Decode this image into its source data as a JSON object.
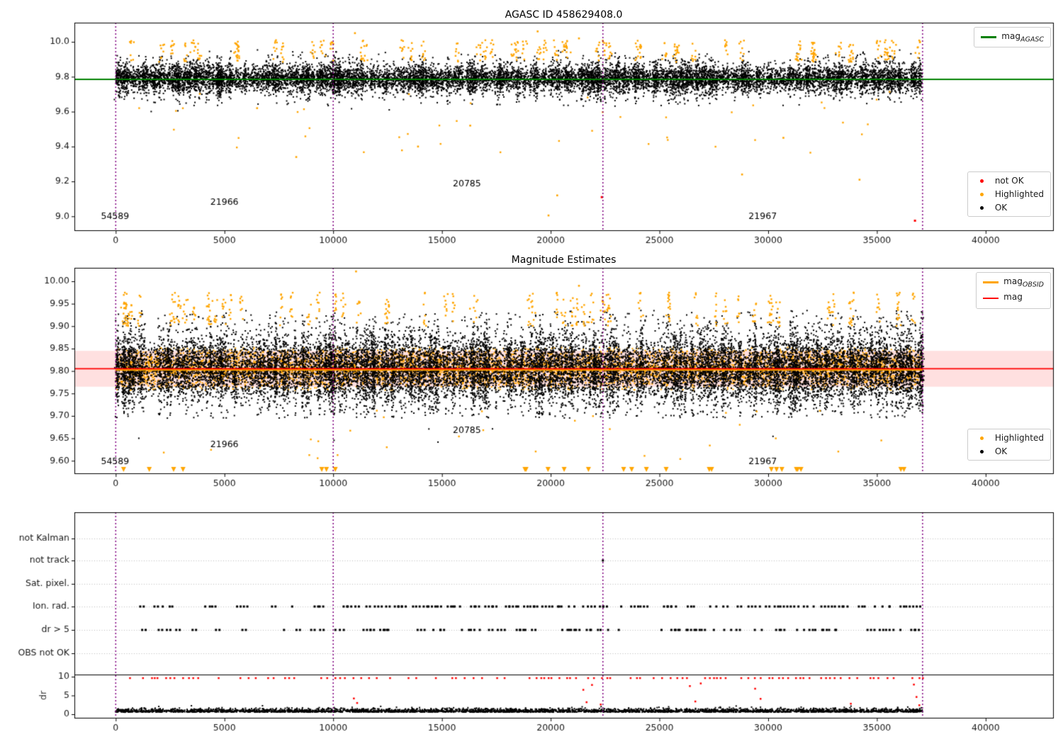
{
  "colors": {
    "ok": "#000000",
    "highlighted": "#ffa500",
    "not_ok": "#ff0000",
    "mag_agasc": "#008000",
    "mag_obsid": "#ffa500",
    "mag": "#ff0000",
    "band": "rgba(255,0,0,0.12)",
    "vline": "#800080",
    "grid": "#bbbbbb",
    "frame": "#000000",
    "text": "#1a1a1a"
  },
  "chart_data": [
    {
      "type": "scatter",
      "title": "AGASC ID 458629408.0",
      "xlim": [
        -1900,
        43100
      ],
      "ylim": [
        8.92,
        10.11
      ],
      "xticks": [
        0,
        5000,
        10000,
        15000,
        20000,
        25000,
        30000,
        35000,
        40000
      ],
      "yticks": [
        9.0,
        9.2,
        9.4,
        9.6,
        9.8,
        10.0
      ],
      "ydecimals": 1,
      "line_agasc": {
        "y": 9.785,
        "color": "#008000",
        "width": 2
      },
      "vlines": [
        0,
        10000,
        22400,
        37100
      ],
      "annotations": [
        {
          "text": "54589",
          "x": -680,
          "y": 8.985
        },
        {
          "text": "21966",
          "x": 4350,
          "y": 9.065
        },
        {
          "text": "20785",
          "x": 15500,
          "y": 9.17
        },
        {
          "text": "21967",
          "x": 29100,
          "y": 8.985
        }
      ],
      "legend_line": [
        {
          "main": "mag",
          "sub": "AGASC",
          "color": "#008000"
        }
      ],
      "legend_markers": [
        {
          "label": "not OK",
          "color": "#ff0000"
        },
        {
          "label": "Highlighted",
          "color": "#ffa500"
        },
        {
          "label": "OK",
          "color": "#000000"
        }
      ],
      "series": {
        "ok_base": {
          "seed": 11,
          "count": 6500,
          "x_max": 37100,
          "mean": 9.79,
          "sigma": 0.033,
          "clip": [
            9.7,
            9.9
          ]
        },
        "ok_spikes": {
          "seed": 12,
          "columns": 420,
          "per": 14,
          "x_max": 37100,
          "mean": 9.79,
          "sigma": 0.055,
          "clip": [
            9.63,
            9.955
          ],
          "xjit": 40
        },
        "ok_low": {
          "seed": 13,
          "count": 12,
          "x_max": 36200,
          "y_range": [
            9.6,
            9.7
          ]
        },
        "hl_clusters": {
          "seed": 14,
          "count": 55,
          "per": 8,
          "x_max": 36800,
          "y_range": [
            9.885,
            10.01
          ],
          "xjit": 60
        },
        "hl_low": {
          "seed": 15,
          "count": 42,
          "x_max": 36200,
          "y_range": [
            9.36,
            9.72
          ]
        },
        "hl_points": [
          [
            11000,
            10.05
          ],
          [
            19400,
            10.06
          ],
          [
            21300,
            10.02
          ],
          [
            20300,
            9.12
          ],
          [
            19900,
            9.005
          ],
          [
            28800,
            9.24
          ],
          [
            34200,
            9.21
          ],
          [
            30700,
            9.45
          ],
          [
            13900,
            9.4
          ],
          [
            16300,
            9.52
          ],
          [
            8300,
            9.34
          ],
          [
            6500,
            9.62
          ]
        ],
        "not_ok_points": [
          [
            22350,
            9.11
          ],
          [
            36750,
            8.975
          ]
        ]
      }
    },
    {
      "type": "scatter",
      "title": "Magnitude Estimates",
      "xlim": [
        -1900,
        43100
      ],
      "ylim": [
        9.572,
        10.03
      ],
      "xticks": [
        0,
        5000,
        10000,
        15000,
        20000,
        25000,
        30000,
        35000,
        40000
      ],
      "yticks": [
        9.6,
        9.65,
        9.7,
        9.75,
        9.8,
        9.85,
        9.9,
        9.95,
        10.0
      ],
      "ydecimals": 2,
      "band": {
        "y0": 9.765,
        "y1": 9.845,
        "color": "rgba(255,0,0,0.12)"
      },
      "line_obsid": {
        "y": 9.803,
        "color": "#ffa500",
        "width": 3,
        "x_range": [
          0,
          37100
        ]
      },
      "line_mag": {
        "y": 9.805,
        "color": "#ff0000",
        "width": 1.8
      },
      "vlines": [
        0,
        10000,
        22400,
        37100
      ],
      "annotations": [
        {
          "text": "54589",
          "x": -680,
          "y": 9.592
        },
        {
          "text": "21966",
          "x": 4350,
          "y": 9.63
        },
        {
          "text": "20785",
          "x": 15500,
          "y": 9.662
        },
        {
          "text": "21967",
          "x": 29100,
          "y": 9.592
        }
      ],
      "legend_line": [
        {
          "main": "mag",
          "sub": "OBSID",
          "color": "#ffa500"
        },
        {
          "main": "mag",
          "sub": "",
          "color": "#ff0000"
        }
      ],
      "legend_markers": [
        {
          "label": "Highlighted",
          "color": "#ffa500"
        },
        {
          "label": "OK",
          "color": "#000000"
        }
      ],
      "series": {
        "ok_base": {
          "seed": 21,
          "count": 8000,
          "x_max": 37100,
          "mean": 9.805,
          "sigma": 0.03,
          "clip": [
            9.74,
            9.875
          ]
        },
        "ok_spikes": {
          "seed": 22,
          "columns": 480,
          "per": 22,
          "x_max": 37100,
          "mean": 9.805,
          "sigma": 0.052,
          "clip": [
            9.695,
            9.935
          ],
          "xjit": 35
        },
        "ok_low": {
          "seed": 27,
          "count": 6,
          "x_max": 36000,
          "y_range": [
            9.64,
            9.7
          ]
        },
        "hl_band": {
          "seed": 23,
          "count": 6000,
          "x_max": 37100,
          "mean": 9.805,
          "sigma": 0.026,
          "clip": [
            9.757,
            9.853
          ]
        },
        "hl_clusters": {
          "seed": 24,
          "count": 60,
          "per": 8,
          "x_max": 36800,
          "y_range": [
            9.9,
            9.975
          ],
          "xjit": 55
        },
        "hl_low": {
          "seed": 25,
          "count": 28,
          "x_max": 36200,
          "y_range": [
            9.6,
            9.72
          ]
        },
        "hl_points": [
          [
            11050,
            10.022
          ],
          [
            21300,
            9.99
          ]
        ],
        "clip_marker_xs": {
          "seed": 26,
          "count": 26,
          "x_max": 36300
        }
      }
    },
    {
      "type": "flags",
      "xlim": [
        -1900,
        43100
      ],
      "xticks": [
        0,
        5000,
        10000,
        15000,
        20000,
        25000,
        30000,
        35000,
        40000
      ],
      "rows": [
        "not Kalman",
        "not track",
        "Sat. pixel.",
        "Ion. rad.",
        "dr > 5",
        "OBS not OK"
      ],
      "vlines": [
        0,
        10000,
        22400,
        37100
      ],
      "flag_dots": {
        "ion_rad": {
          "seed": 31,
          "prob": 0.78,
          "step_min": 140,
          "step_rand": 420,
          "x_max": 37000
        },
        "dr5": {
          "seed": 32,
          "prob": 0.62,
          "step_min": 150,
          "step_rand": 430,
          "x_max": 37000
        },
        "not_track_x": [
          22400
        ]
      },
      "dr": {
        "ticks": [
          0,
          5,
          10
        ],
        "label": "dr",
        "clip_value": 10,
        "trace": {
          "seed": 33,
          "count": 3500,
          "x_max": 37100,
          "base": 0.55,
          "scale": 0.45,
          "clip": [
            0.05,
            2.6
          ]
        },
        "clipped": {
          "seed": 34,
          "step_min": 120,
          "step_rand": 300,
          "prob": 0.7,
          "x_max": 37050
        },
        "mid_points": [
          [
            10950,
            4.2
          ],
          [
            11100,
            3.0
          ],
          [
            21500,
            6.5
          ],
          [
            21650,
            3.2
          ],
          [
            21900,
            7.8
          ],
          [
            22300,
            2.6
          ],
          [
            26400,
            7.5
          ],
          [
            26650,
            3.4
          ],
          [
            26900,
            8.2
          ],
          [
            29400,
            6.8
          ],
          [
            29650,
            4.1
          ],
          [
            33800,
            2.8
          ],
          [
            36700,
            7.9
          ],
          [
            36820,
            4.6
          ],
          [
            36950,
            2.4
          ]
        ]
      }
    }
  ]
}
